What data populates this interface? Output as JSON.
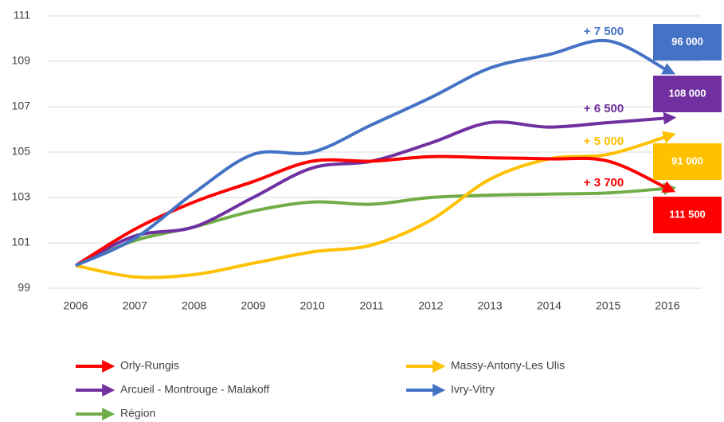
{
  "chart_data": {
    "type": "line",
    "x": [
      2006,
      2007,
      2008,
      2009,
      2010,
      2011,
      2012,
      2013,
      2014,
      2015,
      2016
    ],
    "xlim": [
      2006,
      2016
    ],
    "xticks": [
      2006,
      2007,
      2008,
      2009,
      2010,
      2011,
      2012,
      2013,
      2014,
      2015,
      2016
    ],
    "ylim": [
      99,
      111
    ],
    "yticks": [
      99,
      101,
      103,
      105,
      107,
      109,
      111
    ],
    "grid": true,
    "series": [
      {
        "name": "Orly-Rungis",
        "color": "#ff0000",
        "values": [
          100,
          101.6,
          102.8,
          103.7,
          104.6,
          104.6,
          104.8,
          104.75,
          104.7,
          104.6,
          103.4
        ],
        "annotation": "+ 3 700",
        "box": "111 500"
      },
      {
        "name": "Massy-Antony-Les Ulis",
        "color": "#ffc000",
        "values": [
          100,
          99.5,
          99.6,
          100.1,
          100.6,
          100.9,
          102.0,
          103.8,
          104.7,
          104.9,
          105.7
        ],
        "annotation": "+ 5 000",
        "box": "91 000"
      },
      {
        "name": "Arcueil - Montrouge - Malakoff",
        "color": "#7030a0",
        "values": [
          100,
          101.3,
          101.7,
          103.0,
          104.3,
          104.6,
          105.4,
          106.3,
          106.1,
          106.3,
          106.5
        ],
        "annotation": "+ 6 500",
        "box": "108 000"
      },
      {
        "name": "Ivry-Vitry",
        "color": "#4472c4",
        "values": [
          100,
          101.2,
          103.2,
          104.9,
          105.0,
          106.2,
          107.4,
          108.7,
          109.3,
          109.9,
          108.6
        ],
        "annotation": "+ 7 500",
        "box": "96 000"
      },
      {
        "name": "Région",
        "color": "#70ad47",
        "values": [
          100,
          101.1,
          101.7,
          102.4,
          102.8,
          102.7,
          103.0,
          103.1,
          103.15,
          103.2,
          103.4
        ]
      }
    ]
  }
}
